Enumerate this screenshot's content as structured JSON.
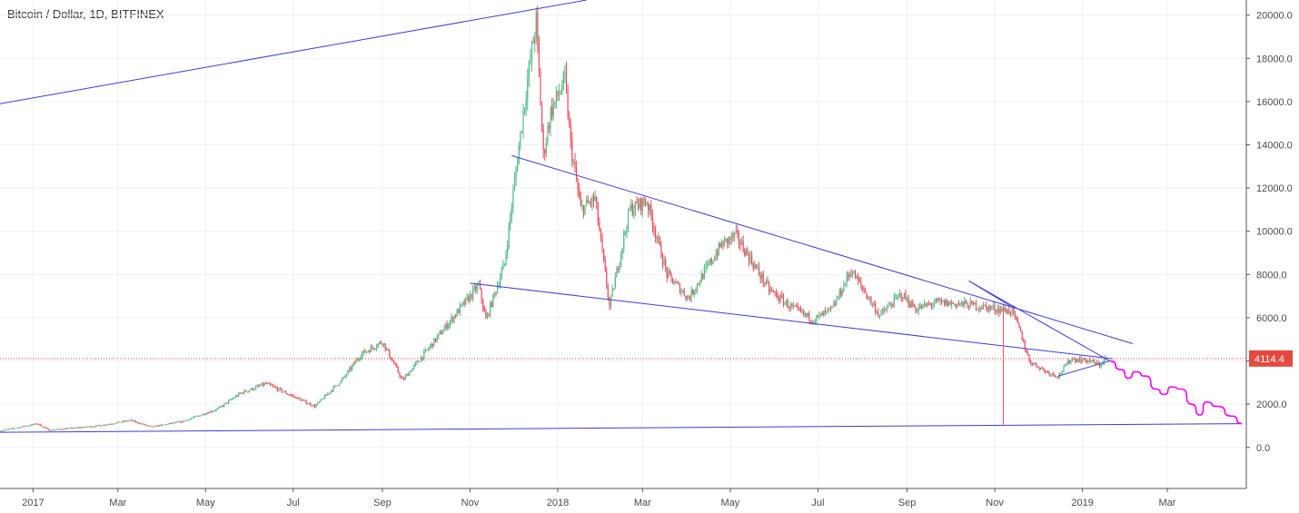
{
  "title": "Bitcoin / Dollar, 1D, BITFINEX",
  "colors": {
    "up": "#53b987",
    "down": "#eb4d5c",
    "trendline": "#3d3dd6",
    "projection": "#ff00ff",
    "price_line": "#e5483f",
    "price_tag_bg": "#e5483f",
    "grid": "#eef0f3",
    "axis_text": "#4a4a4a"
  },
  "chart_data": {
    "type": "candlestick",
    "symbol": "Bitcoin / Dollar",
    "interval": "1D",
    "exchange": "BITFINEX",
    "yaxis": {
      "ticks": [
        "20000.0",
        "18000.0",
        "16000.0",
        "14000.0",
        "12000.0",
        "10000.0",
        "8000.0",
        "6000.0",
        "4000.0",
        "2000.0",
        "0.0"
      ],
      "tick_values": [
        20000,
        18000,
        16000,
        14000,
        12000,
        10000,
        8000,
        6000,
        4000,
        2000,
        0
      ],
      "range": [
        -1900,
        20700
      ]
    },
    "xaxis": {
      "labels": [
        "2017",
        "Mar",
        "May",
        "Jul",
        "Sep",
        "Nov",
        "2018",
        "Mar",
        "May",
        "Jul",
        "Sep",
        "Nov",
        "2019",
        "Mar"
      ],
      "label_dates": [
        "2017-01-01",
        "2017-03-01",
        "2017-05-01",
        "2017-07-01",
        "2017-09-01",
        "2017-11-01",
        "2018-01-01",
        "2018-03-01",
        "2018-05-01",
        "2018-07-01",
        "2018-09-01",
        "2018-11-01",
        "2019-01-01",
        "2019-03-01"
      ],
      "range": [
        "2016-12-09",
        "2019-04-25"
      ]
    },
    "last_price": "4114.4",
    "last_price_value": 4114.4,
    "price_path": [
      [
        "2016-12-09",
        760
      ],
      [
        "2017-01-04",
        1100
      ],
      [
        "2017-01-12",
        800
      ],
      [
        "2017-02-15",
        1000
      ],
      [
        "2017-03-10",
        1250
      ],
      [
        "2017-03-24",
        950
      ],
      [
        "2017-04-15",
        1200
      ],
      [
        "2017-05-10",
        1800
      ],
      [
        "2017-05-25",
        2500
      ],
      [
        "2017-06-12",
        2950
      ],
      [
        "2017-06-28",
        2450
      ],
      [
        "2017-07-16",
        1900
      ],
      [
        "2017-08-05",
        3200
      ],
      [
        "2017-08-17",
        4300
      ],
      [
        "2017-09-01",
        4900
      ],
      [
        "2017-09-15",
        3100
      ],
      [
        "2017-10-01",
        4400
      ],
      [
        "2017-10-20",
        6000
      ],
      [
        "2017-11-07",
        7500
      ],
      [
        "2017-11-12",
        5900
      ],
      [
        "2017-11-25",
        8500
      ],
      [
        "2017-12-07",
        15000
      ],
      [
        "2017-12-11",
        17000
      ],
      [
        "2017-12-17",
        19700
      ],
      [
        "2017-12-22",
        13500
      ],
      [
        "2017-12-27",
        15500
      ],
      [
        "2018-01-06",
        17000
      ],
      [
        "2018-01-10",
        14000
      ],
      [
        "2018-01-17",
        11000
      ],
      [
        "2018-01-27",
        11500
      ],
      [
        "2018-02-06",
        6500
      ],
      [
        "2018-02-20",
        11000
      ],
      [
        "2018-03-04",
        11400
      ],
      [
        "2018-03-18",
        8000
      ],
      [
        "2018-04-02",
        6900
      ],
      [
        "2018-04-25",
        9400
      ],
      [
        "2018-05-05",
        9800
      ],
      [
        "2018-05-28",
        7300
      ],
      [
        "2018-06-12",
        6500
      ],
      [
        "2018-06-28",
        5900
      ],
      [
        "2018-07-11",
        6400
      ],
      [
        "2018-07-24",
        8200
      ],
      [
        "2018-08-13",
        6100
      ],
      [
        "2018-08-28",
        7100
      ],
      [
        "2018-09-07",
        6400
      ],
      [
        "2018-09-21",
        6700
      ],
      [
        "2018-10-15",
        6600
      ],
      [
        "2018-11-13",
        6300
      ],
      [
        "2018-11-18",
        5500
      ],
      [
        "2018-11-25",
        4000
      ],
      [
        "2018-12-07",
        3500
      ],
      [
        "2018-12-15",
        3300
      ],
      [
        "2018-12-24",
        4100
      ],
      [
        "2019-01-06",
        4000
      ],
      [
        "2019-01-13",
        3800
      ],
      [
        "2019-01-17",
        4114.4
      ]
    ],
    "trendlines": [
      {
        "from": [
          "2016-12-09",
          15900
        ],
        "to": [
          "2018-01-21",
          20700
        ]
      },
      {
        "from": [
          "2017-11-30",
          13500
        ],
        "to": [
          "2019-02-05",
          4800
        ]
      },
      {
        "from": [
          "2017-11-01",
          7600
        ],
        "to": [
          "2019-01-22",
          4100
        ]
      },
      {
        "from": [
          "2016-12-09",
          700
        ],
        "to": [
          "2019-04-22",
          1100
        ]
      },
      {
        "from": [
          "2018-10-14",
          7700
        ],
        "to": [
          "2019-01-20",
          4000
        ]
      },
      {
        "from": [
          "2018-10-14",
          7700
        ],
        "to": [
          "2018-11-13",
          6500
        ]
      },
      {
        "from": [
          "2018-12-15",
          3300
        ],
        "to": [
          "2019-01-20",
          4000
        ]
      }
    ],
    "vertical_marker": {
      "date": "2018-11-07",
      "from": 6400,
      "to": 1050
    },
    "projection_path": [
      [
        "2019-01-20",
        4000
      ],
      [
        "2019-01-28",
        3600
      ],
      [
        "2019-02-02",
        3200
      ],
      [
        "2019-02-07",
        3500
      ],
      [
        "2019-02-14",
        3300
      ],
      [
        "2019-02-21",
        2700
      ],
      [
        "2019-02-27",
        2450
      ],
      [
        "2019-03-04",
        2800
      ],
      [
        "2019-03-11",
        2700
      ],
      [
        "2019-03-18",
        2000
      ],
      [
        "2019-03-24",
        1500
      ],
      [
        "2019-03-28",
        2100
      ],
      [
        "2019-04-05",
        1900
      ],
      [
        "2019-04-15",
        1450
      ],
      [
        "2019-04-22",
        1100
      ]
    ]
  }
}
